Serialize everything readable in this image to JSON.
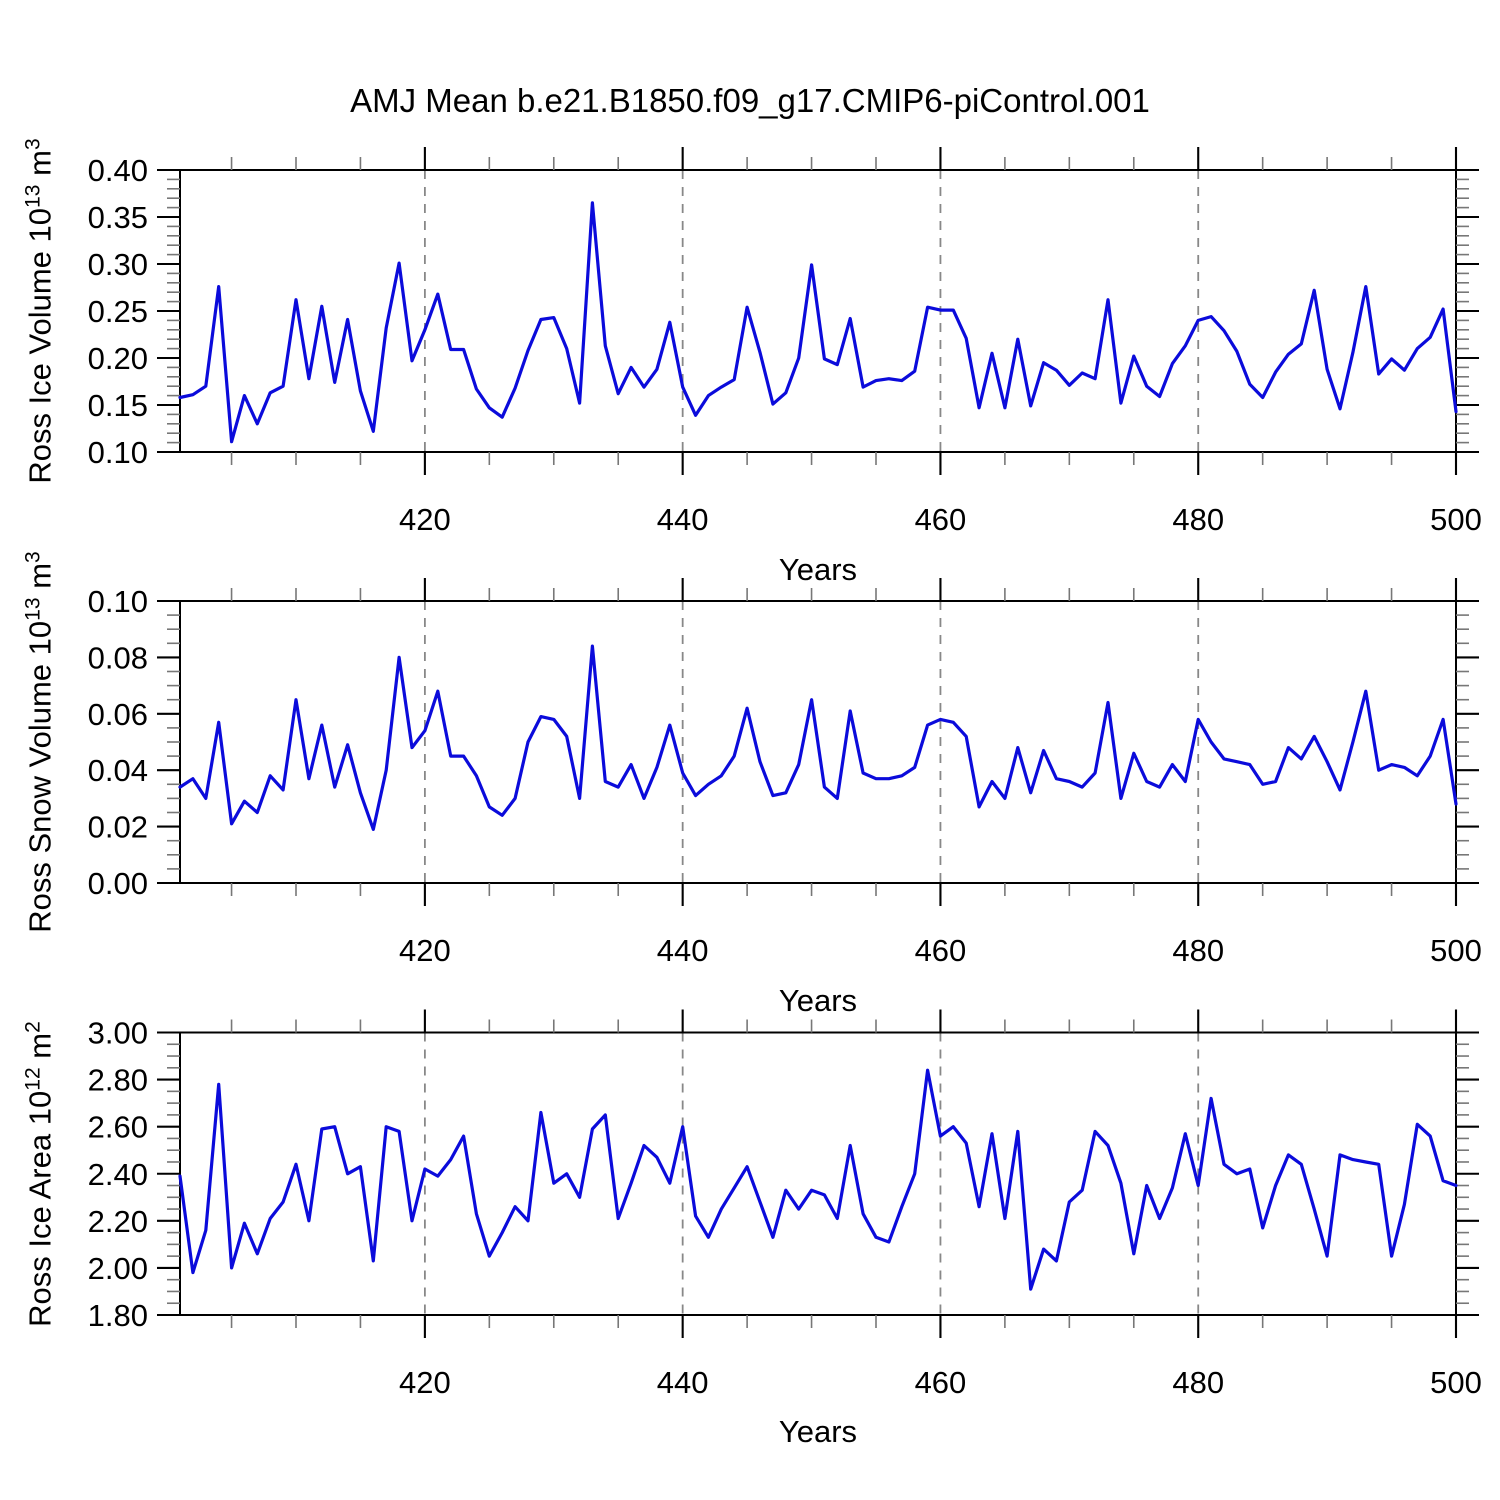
{
  "title": "AMJ Mean b.e21.B1850.f09_g17.CMIP6-piControl.001",
  "line_color": "#0b0bdb",
  "gridline_color": "#888888",
  "frame_color": "#000000",
  "minor_tick_color": "#777777",
  "chart_data": [
    {
      "type": "line",
      "ylabel": "Ross Ice Volume 10^13 m^3",
      "ylabel_parts": {
        "name": "Ross Ice Volume",
        "scale_base": "10",
        "scale_exp": "13",
        "unit": "m",
        "unit_exp": "3"
      },
      "xlabel": "Years",
      "x_start": 401,
      "x_end": 500,
      "x_major_ticks": [
        420,
        440,
        460,
        480,
        500
      ],
      "x_minor_step": 5,
      "ylim": [
        0.1,
        0.4
      ],
      "y_major_step": 0.05,
      "y_minor_step": 0.01,
      "y_tick_decimals": 2,
      "gridlines_x": [
        420,
        440,
        460,
        480
      ],
      "legend": "none",
      "grid": "dashed-vertical-only",
      "values": [
        0.158,
        0.161,
        0.17,
        0.276,
        0.111,
        0.16,
        0.13,
        0.163,
        0.17,
        0.262,
        0.178,
        0.255,
        0.174,
        0.241,
        0.165,
        0.122,
        0.232,
        0.301,
        0.197,
        0.23,
        0.268,
        0.209,
        0.209,
        0.167,
        0.147,
        0.137,
        0.168,
        0.208,
        0.241,
        0.243,
        0.21,
        0.152,
        0.365,
        0.213,
        0.162,
        0.19,
        0.169,
        0.188,
        0.238,
        0.169,
        0.139,
        0.16,
        0.169,
        0.177,
        0.254,
        0.206,
        0.151,
        0.163,
        0.2,
        0.299,
        0.199,
        0.193,
        0.242,
        0.169,
        0.176,
        0.178,
        0.176,
        0.186,
        0.254,
        0.251,
        0.251,
        0.221,
        0.147,
        0.205,
        0.147,
        0.22,
        0.149,
        0.195,
        0.187,
        0.171,
        0.184,
        0.178,
        0.262,
        0.152,
        0.202,
        0.17,
        0.159,
        0.194,
        0.213,
        0.24,
        0.244,
        0.229,
        0.207,
        0.172,
        0.158,
        0.185,
        0.204,
        0.215,
        0.272,
        0.188,
        0.146,
        0.206,
        0.276,
        0.183,
        0.199,
        0.187,
        0.21,
        0.222,
        0.252,
        0.143
      ]
    },
    {
      "type": "line",
      "ylabel": "Ross Snow Volume 10^13 m^3",
      "ylabel_parts": {
        "name": "Ross Snow Volume",
        "scale_base": "10",
        "scale_exp": "13",
        "unit": "m",
        "unit_exp": "3"
      },
      "xlabel": "Years",
      "x_start": 401,
      "x_end": 500,
      "x_major_ticks": [
        420,
        440,
        460,
        480,
        500
      ],
      "x_minor_step": 5,
      "ylim": [
        0.0,
        0.1
      ],
      "y_major_step": 0.02,
      "y_minor_step": 0.005,
      "y_tick_decimals": 2,
      "gridlines_x": [
        420,
        440,
        460,
        480
      ],
      "legend": "none",
      "grid": "dashed-vertical-only",
      "values": [
        0.034,
        0.037,
        0.03,
        0.057,
        0.021,
        0.029,
        0.025,
        0.038,
        0.033,
        0.065,
        0.037,
        0.056,
        0.034,
        0.049,
        0.032,
        0.019,
        0.04,
        0.08,
        0.048,
        0.054,
        0.068,
        0.045,
        0.045,
        0.038,
        0.027,
        0.024,
        0.03,
        0.05,
        0.059,
        0.058,
        0.052,
        0.03,
        0.084,
        0.036,
        0.034,
        0.042,
        0.03,
        0.041,
        0.056,
        0.039,
        0.031,
        0.035,
        0.038,
        0.045,
        0.062,
        0.043,
        0.031,
        0.032,
        0.042,
        0.065,
        0.034,
        0.03,
        0.061,
        0.039,
        0.037,
        0.037,
        0.038,
        0.041,
        0.056,
        0.058,
        0.057,
        0.052,
        0.027,
        0.036,
        0.03,
        0.048,
        0.032,
        0.047,
        0.037,
        0.036,
        0.034,
        0.039,
        0.064,
        0.03,
        0.046,
        0.036,
        0.034,
        0.042,
        0.036,
        0.058,
        0.05,
        0.044,
        0.043,
        0.042,
        0.035,
        0.036,
        0.048,
        0.044,
        0.052,
        0.043,
        0.033,
        0.05,
        0.068,
        0.04,
        0.042,
        0.041,
        0.038,
        0.045,
        0.058,
        0.028
      ]
    },
    {
      "type": "line",
      "ylabel": "Ross Ice Area 10^12 m^2",
      "ylabel_parts": {
        "name": "Ross Ice Area",
        "scale_base": "10",
        "scale_exp": "12",
        "unit": "m",
        "unit_exp": "2"
      },
      "xlabel": "Years",
      "x_start": 401,
      "x_end": 500,
      "x_major_ticks": [
        420,
        440,
        460,
        480,
        500
      ],
      "x_minor_step": 5,
      "ylim": [
        1.8,
        3.0
      ],
      "y_major_step": 0.2,
      "y_minor_step": 0.05,
      "y_tick_decimals": 2,
      "gridlines_x": [
        420,
        440,
        460,
        480
      ],
      "legend": "none",
      "grid": "dashed-vertical-only",
      "values": [
        2.39,
        1.98,
        2.16,
        2.78,
        2.0,
        2.19,
        2.06,
        2.21,
        2.28,
        2.44,
        2.2,
        2.59,
        2.6,
        2.4,
        2.43,
        2.03,
        2.6,
        2.58,
        2.2,
        2.42,
        2.39,
        2.46,
        2.56,
        2.23,
        2.05,
        2.15,
        2.26,
        2.2,
        2.66,
        2.36,
        2.4,
        2.3,
        2.59,
        2.65,
        2.21,
        2.36,
        2.52,
        2.47,
        2.36,
        2.6,
        2.22,
        2.13,
        2.25,
        2.34,
        2.43,
        2.28,
        2.13,
        2.33,
        2.25,
        2.33,
        2.31,
        2.21,
        2.52,
        2.23,
        2.13,
        2.11,
        2.26,
        2.4,
        2.84,
        2.56,
        2.6,
        2.53,
        2.26,
        2.57,
        2.21,
        2.58,
        1.91,
        2.08,
        2.03,
        2.28,
        2.33,
        2.58,
        2.52,
        2.36,
        2.06,
        2.35,
        2.21,
        2.34,
        2.57,
        2.35,
        2.72,
        2.44,
        2.4,
        2.42,
        2.17,
        2.35,
        2.48,
        2.44,
        2.25,
        2.05,
        2.48,
        2.46,
        2.45,
        2.44,
        2.05,
        2.27,
        2.61,
        2.56,
        2.37,
        2.35
      ]
    }
  ]
}
